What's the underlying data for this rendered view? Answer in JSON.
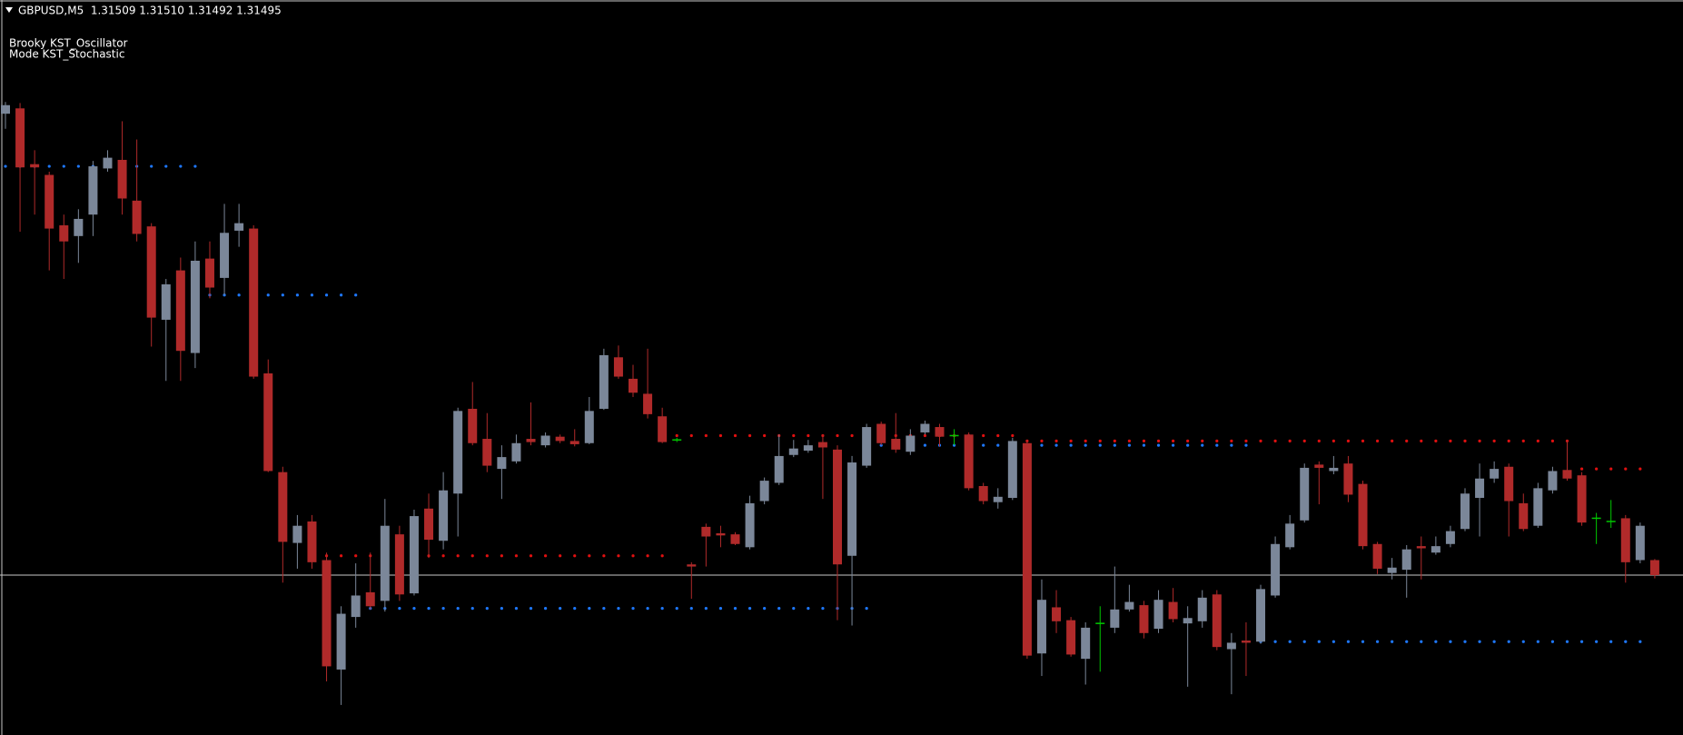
{
  "chart_data": {
    "type": "candlestick",
    "title": "GBPUSD,M5  1.31509 1.31510 1.31492 1.31495",
    "indicator_labels": [
      "Brooky KST_Oscillator",
      "Mode KST_Stochastic"
    ],
    "open": [
      1.31925,
      1.3193,
      1.31878,
      1.31868,
      1.31821,
      1.31811,
      1.31831,
      1.31874,
      1.31882,
      1.31844,
      1.3182,
      1.31733,
      1.31779,
      1.31702,
      1.3179,
      1.31772,
      1.31816,
      1.31818,
      1.31683,
      1.31591,
      1.31525,
      1.31545,
      1.31509,
      1.31407,
      1.31456,
      1.31479,
      1.31471,
      1.31533,
      1.31478,
      1.31557,
      1.31527,
      1.31571,
      1.3165,
      1.31622,
      1.31594,
      1.31601,
      1.31622,
      1.31616,
      1.31624,
      1.3162,
      1.31618,
      1.3165,
      1.31698,
      1.31678,
      1.31664,
      1.31643,
      1.31621,
      1.31505,
      1.3154,
      1.31534,
      1.31533,
      1.31521,
      1.31564,
      1.31581,
      1.31607,
      1.31611,
      1.31619,
      1.31612,
      1.31513,
      1.31597,
      1.31636,
      1.31622,
      1.3161,
      1.31628,
      1.31633,
      1.31625,
      1.31626,
      1.31578,
      1.31563,
      1.31567,
      1.31618,
      1.31422,
      1.31465,
      1.31453,
      1.31417,
      1.3145,
      1.31446,
      1.31463,
      1.31467,
      1.31445,
      1.3147,
      1.3145,
      1.31452,
      1.31477,
      1.31426,
      1.31434,
      1.31433,
      1.31476,
      1.31521,
      1.31546,
      1.31598,
      1.31592,
      1.31599,
      1.3158,
      1.31524,
      1.31497,
      1.315,
      1.31522,
      1.31516,
      1.31524,
      1.31538,
      1.31567,
      1.31585,
      1.31596,
      1.31562,
      1.31541,
      1.31574,
      1.31593,
      1.31588,
      1.31548,
      1.31545,
      1.31548,
      1.31509,
      1.31509
    ],
    "high": [
      1.31936,
      1.31935,
      1.31891,
      1.31871,
      1.31831,
      1.31836,
      1.31881,
      1.31891,
      1.31918,
      1.31901,
      1.31823,
      1.31771,
      1.31791,
      1.31806,
      1.31806,
      1.31841,
      1.31841,
      1.31821,
      1.31696,
      1.31596,
      1.31551,
      1.31551,
      1.31516,
      1.31466,
      1.31506,
      1.31516,
      1.31566,
      1.31541,
      1.31556,
      1.31571,
      1.31591,
      1.31651,
      1.31675,
      1.31646,
      1.31616,
      1.31626,
      1.31656,
      1.31628,
      1.31626,
      1.31631,
      1.31661,
      1.31706,
      1.31709,
      1.31691,
      1.31706,
      1.31651,
      1.31623,
      1.31507,
      1.31543,
      1.31541,
      1.31535,
      1.31569,
      1.31586,
      1.31626,
      1.31621,
      1.31621,
      1.31626,
      1.31616,
      1.31606,
      1.31636,
      1.31638,
      1.31646,
      1.31631,
      1.31639,
      1.31636,
      1.31631,
      1.31628,
      1.31581,
      1.31576,
      1.31623,
      1.31621,
      1.31491,
      1.31481,
      1.31456,
      1.31451,
      1.31466,
      1.31503,
      1.31486,
      1.31471,
      1.31481,
      1.31483,
      1.31466,
      1.31481,
      1.31481,
      1.31441,
      1.31451,
      1.31486,
      1.31531,
      1.31551,
      1.31599,
      1.31601,
      1.31606,
      1.31606,
      1.31583,
      1.31526,
      1.31511,
      1.31523,
      1.31531,
      1.31531,
      1.31541,
      1.31576,
      1.31599,
      1.31601,
      1.31599,
      1.31571,
      1.31581,
      1.31596,
      1.31621,
      1.31591,
      1.31553,
      1.31565,
      1.31551,
      1.31544,
      1.3151
    ],
    "low": [
      1.31911,
      1.31815,
      1.31831,
      1.31779,
      1.31771,
      1.31786,
      1.31811,
      1.31871,
      1.31831,
      1.31806,
      1.31708,
      1.31676,
      1.31676,
      1.31688,
      1.31753,
      1.31756,
      1.31801,
      1.31678,
      1.31591,
      1.31488,
      1.31501,
      1.31501,
      1.31396,
      1.31374,
      1.31446,
      1.31463,
      1.31461,
      1.31471,
      1.31476,
      1.31511,
      1.31519,
      1.31531,
      1.31616,
      1.31591,
      1.31566,
      1.31599,
      1.31616,
      1.31614,
      1.31618,
      1.31615,
      1.31617,
      1.31649,
      1.31678,
      1.31661,
      1.31641,
      1.31618,
      1.31619,
      1.31473,
      1.31503,
      1.31521,
      1.31523,
      1.31519,
      1.31561,
      1.31579,
      1.31605,
      1.31609,
      1.31566,
      1.31453,
      1.31448,
      1.31595,
      1.31616,
      1.31609,
      1.31607,
      1.31626,
      1.31615,
      1.31616,
      1.31574,
      1.31561,
      1.31557,
      1.31565,
      1.31417,
      1.31401,
      1.31441,
      1.31419,
      1.31393,
      1.31405,
      1.31441,
      1.31461,
      1.31436,
      1.31441,
      1.31451,
      1.31391,
      1.31446,
      1.31425,
      1.31384,
      1.31401,
      1.31431,
      1.31474,
      1.31519,
      1.31544,
      1.31561,
      1.31589,
      1.31563,
      1.31519,
      1.31496,
      1.31491,
      1.31474,
      1.31491,
      1.31514,
      1.31521,
      1.31536,
      1.31531,
      1.31581,
      1.31531,
      1.31536,
      1.31539,
      1.31571,
      1.31583,
      1.31541,
      1.31524,
      1.31539,
      1.31488,
      1.31506,
      1.31492
    ],
    "close": [
      1.31933,
      1.31875,
      1.31875,
      1.31818,
      1.31806,
      1.31827,
      1.31876,
      1.31884,
      1.31846,
      1.31813,
      1.31735,
      1.31766,
      1.31704,
      1.31788,
      1.31763,
      1.31814,
      1.31823,
      1.3168,
      1.31592,
      1.31526,
      1.31541,
      1.31507,
      1.3141,
      1.31459,
      1.31476,
      1.31466,
      1.31541,
      1.31477,
      1.3155,
      1.31528,
      1.31574,
      1.31648,
      1.31618,
      1.31597,
      1.31605,
      1.31618,
      1.31619,
      1.31625,
      1.3162,
      1.31617,
      1.31648,
      1.317,
      1.3168,
      1.31665,
      1.31645,
      1.31619,
      1.31621,
      1.31503,
      1.31531,
      1.31532,
      1.31524,
      1.31562,
      1.31583,
      1.31606,
      1.31613,
      1.31616,
      1.31614,
      1.31505,
      1.316,
      1.31633,
      1.31618,
      1.31612,
      1.31625,
      1.31636,
      1.31624,
      1.31625,
      1.31576,
      1.31564,
      1.31568,
      1.3162,
      1.3142,
      1.31472,
      1.31452,
      1.31421,
      1.31446,
      1.3145,
      1.31463,
      1.3147,
      1.31441,
      1.31472,
      1.31454,
      1.31455,
      1.31474,
      1.31428,
      1.31432,
      1.31432,
      1.31482,
      1.31524,
      1.31543,
      1.31595,
      1.31595,
      1.31595,
      1.3157,
      1.31522,
      1.31501,
      1.31502,
      1.31519,
      1.3152,
      1.31522,
      1.31536,
      1.31571,
      1.31585,
      1.31594,
      1.31564,
      1.31538,
      1.31576,
      1.31592,
      1.31585,
      1.31544,
      1.31548,
      1.31545,
      1.31507,
      1.31541,
      1.31495
    ],
    "levels": [
      {
        "color": "#1e78ff",
        "value": 1.31876,
        "start": 0,
        "end": 13
      },
      {
        "color": "#1e78ff",
        "value": 1.31756,
        "start": 14,
        "end": 24
      },
      {
        "color": "#e01010",
        "value": 1.31513,
        "start": 22,
        "end": 45
      },
      {
        "color": "#1e78ff",
        "value": 1.31464,
        "start": 25,
        "end": 59
      },
      {
        "color": "#e01010",
        "value": 1.31625,
        "start": 46,
        "end": 69
      },
      {
        "color": "#1e78ff",
        "value": 1.31616,
        "start": 60,
        "end": 85
      },
      {
        "color": "#e01010",
        "value": 1.3162,
        "start": 70,
        "end": 107
      },
      {
        "color": "#e01010",
        "value": 1.31594,
        "start": 108,
        "end": 112
      },
      {
        "color": "#1e78ff",
        "value": 1.31433,
        "start": 86,
        "end": 112
      }
    ],
    "bull_color": "#7b8799",
    "bear_color": "#b02a2a",
    "doji_color": "#00c800",
    "ylim": [
      1.31346,
      1.32031
    ]
  }
}
